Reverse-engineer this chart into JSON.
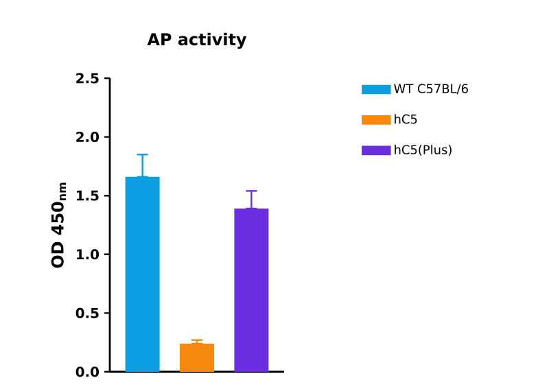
{
  "chart_data": {
    "type": "bar",
    "title": "AP activity",
    "ylabel": "OD 450$_{nm}$",
    "categories": [
      null,
      null,
      null
    ],
    "series": [
      {
        "name": "WT C57BL/6",
        "color": "#0c9ee0",
        "values": [
          1.66,
          null,
          null
        ],
        "errors": [
          [
            1.66,
            1.85
          ],
          null,
          null
        ]
      },
      {
        "name": "hC5",
        "color": "#f7890f",
        "values": [
          null,
          0.24,
          null
        ],
        "errors": [
          null,
          [
            0.24,
            0.27
          ],
          null
        ]
      },
      {
        "name": "hC5(Plus)",
        "color": "#6a2ee0",
        "values": [
          null,
          null,
          1.39
        ],
        "errors": [
          null,
          null,
          [
            1.39,
            1.54
          ]
        ]
      }
    ],
    "ylim": [
      0,
      2.5
    ],
    "yticks": [
      {
        "value": 0,
        "label": "0.0"
      },
      {
        "value": 0.5,
        "label": "0.5"
      },
      {
        "value": 1,
        "label": "1.0"
      },
      {
        "value": 1.5,
        "label": "1.5"
      },
      {
        "value": 2,
        "label": "2.0"
      },
      {
        "value": 2.5,
        "label": "2.5"
      }
    ],
    "legend": "top right"
  }
}
